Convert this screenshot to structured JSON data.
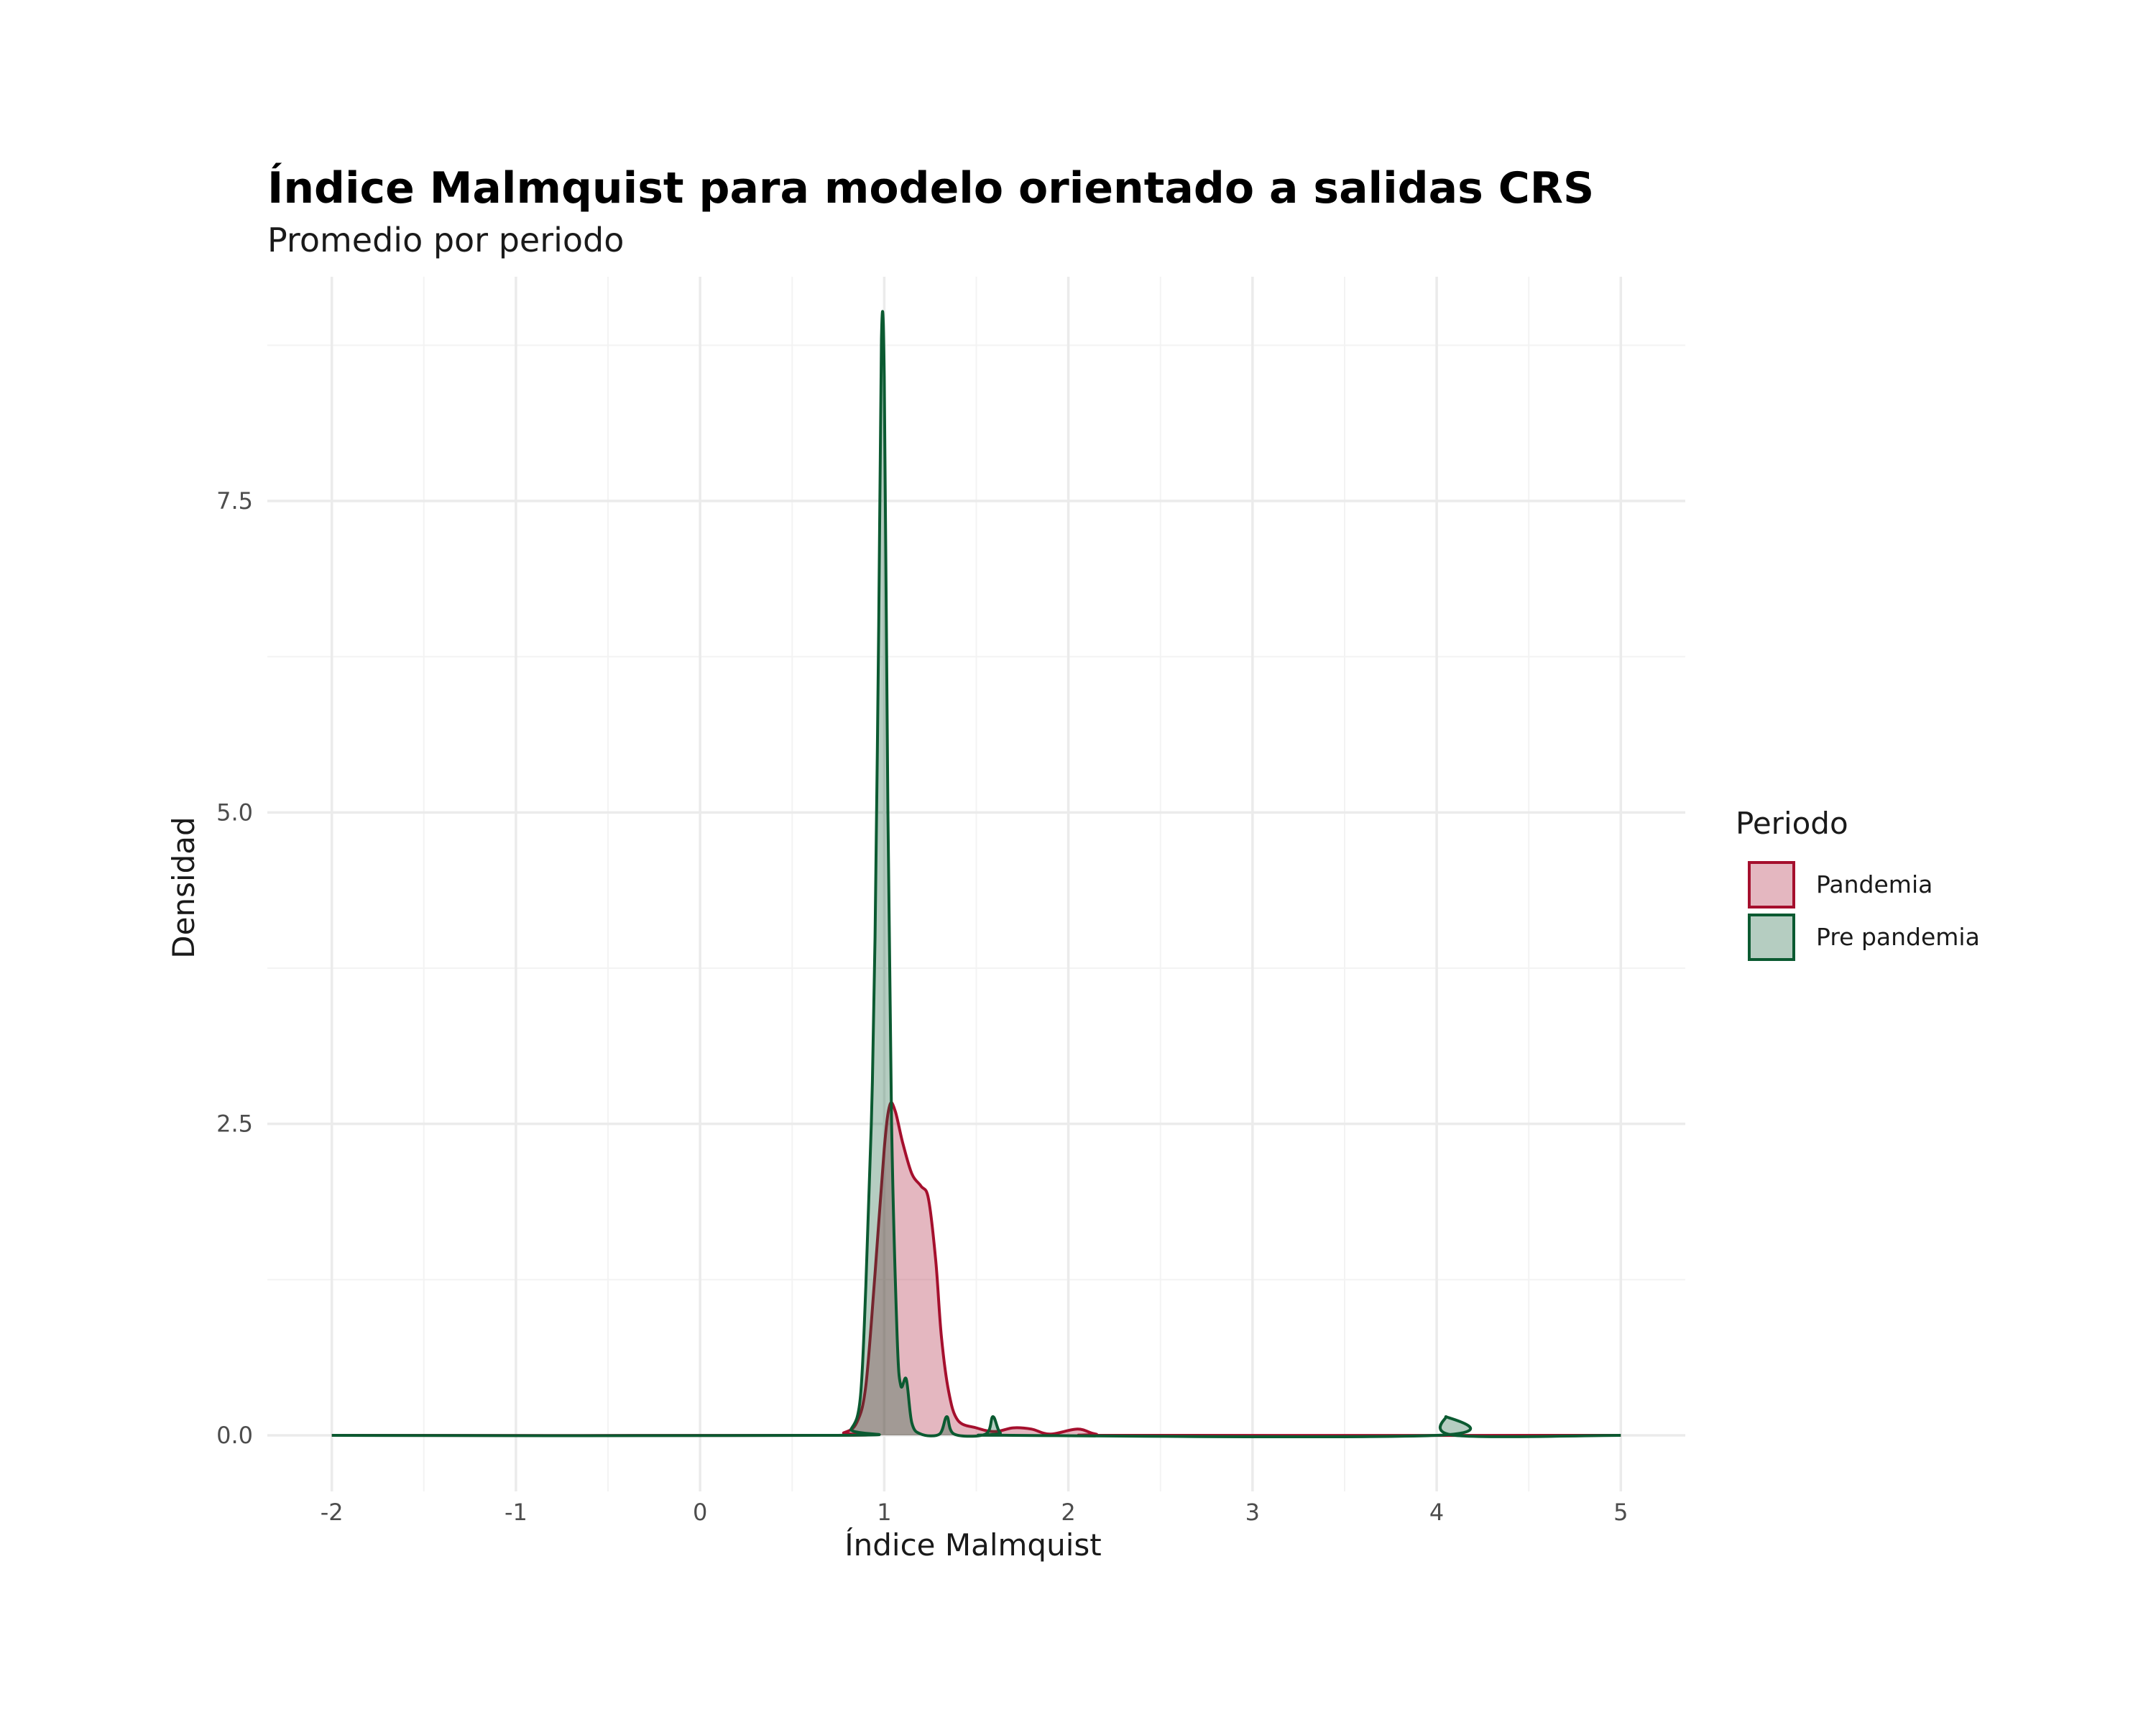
{
  "chart_data": {
    "type": "area",
    "title": "Índice Malmquist para modelo orientado a salidas CRS",
    "subtitle": "Promedio por periodo",
    "xlabel": "Índice Malmquist",
    "ylabel": "Densidad",
    "xlim": [
      -2.35,
      5.35
    ],
    "ylim": [
      -0.45,
      9.3
    ],
    "x_ticks": [
      -2,
      -1,
      0,
      1,
      2,
      3,
      4,
      5
    ],
    "x_tick_labels": [
      "-2",
      "-1",
      "0",
      "1",
      "2",
      "3",
      "4",
      "5"
    ],
    "y_ticks": [
      0,
      2.5,
      5,
      7.5
    ],
    "y_tick_labels": [
      "0.0",
      "2.5",
      "5.0",
      "7.5"
    ],
    "grid": true,
    "legend": {
      "title": "Periodo",
      "position": "right"
    },
    "series": [
      {
        "name": "Pandemia",
        "color": "#a50f2d",
        "fill": "#e3a8b5",
        "points": [
          [
            -2,
            0
          ],
          [
            0.7,
            0
          ],
          [
            0.78,
            0.02
          ],
          [
            0.85,
            0.1
          ],
          [
            0.9,
            0.4
          ],
          [
            0.95,
            1.3
          ],
          [
            1.0,
            2.3
          ],
          [
            1.03,
            2.65
          ],
          [
            1.06,
            2.6
          ],
          [
            1.1,
            2.35
          ],
          [
            1.15,
            2.1
          ],
          [
            1.2,
            2.0
          ],
          [
            1.24,
            1.9
          ],
          [
            1.28,
            1.4
          ],
          [
            1.31,
            0.8
          ],
          [
            1.35,
            0.35
          ],
          [
            1.4,
            0.12
          ],
          [
            1.5,
            0.06
          ],
          [
            1.6,
            0.03
          ],
          [
            1.7,
            0.06
          ],
          [
            1.8,
            0.05
          ],
          [
            1.9,
            0.01
          ],
          [
            2.05,
            0.05
          ],
          [
            2.15,
            0.01
          ],
          [
            2.3,
            0
          ],
          [
            5,
            0
          ]
        ]
      },
      {
        "name": "Pre pandemia",
        "color": "#0b5a31",
        "fill": "#b3d6c6",
        "points": [
          [
            -2,
            0
          ],
          [
            0.75,
            0
          ],
          [
            0.82,
            0.05
          ],
          [
            0.87,
            0.3
          ],
          [
            0.9,
            1.2
          ],
          [
            0.93,
            2.5
          ],
          [
            0.95,
            4.0
          ],
          [
            0.97,
            6.5
          ],
          [
            0.985,
            8.8
          ],
          [
            1.0,
            8.5
          ],
          [
            1.02,
            5.0
          ],
          [
            1.04,
            2.5
          ],
          [
            1.07,
            0.8
          ],
          [
            1.09,
            0.4
          ],
          [
            1.12,
            0.45
          ],
          [
            1.15,
            0.1
          ],
          [
            1.2,
            0.01
          ],
          [
            1.3,
            0.01
          ],
          [
            1.34,
            0.15
          ],
          [
            1.38,
            0.01
          ],
          [
            1.55,
            0.01
          ],
          [
            1.59,
            0.15
          ],
          [
            1.63,
            0.02
          ],
          [
            1.7,
            0
          ],
          [
            4.0,
            0
          ],
          [
            4.05,
            0.15
          ],
          [
            4.1,
            0
          ],
          [
            5,
            0
          ]
        ]
      }
    ]
  }
}
